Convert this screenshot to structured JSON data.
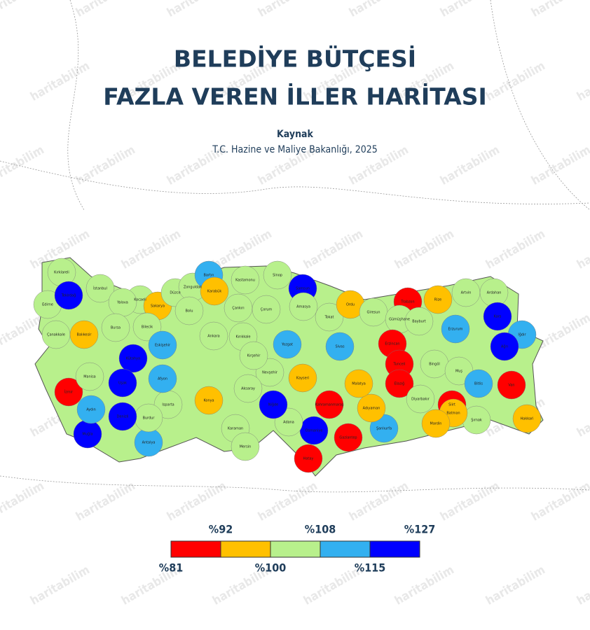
{
  "header": {
    "title_lines": [
      "BELEDİYE BÜTÇESİ",
      "FAZLA VEREN İLLER HARİTASI"
    ],
    "source_label": "Kaynak",
    "source": "T.C. Hazine ve Maliye Bakanlığı, 2025"
  },
  "watermark": "haritabilim",
  "legend": {
    "colors": [
      "#ff0000",
      "#ffc000",
      "#b8f08c",
      "#33b0f0",
      "#0000ff"
    ],
    "labels": [
      "%81",
      "%92",
      "%100",
      "%108",
      "%115",
      "%127"
    ]
  },
  "provinces": [
    {
      "name": "Kırklareli",
      "class": 2
    },
    {
      "name": "Edirne",
      "class": 2
    },
    {
      "name": "İstanbul",
      "class": 2
    },
    {
      "name": "Tekirdağ",
      "class": 4
    },
    {
      "name": "Kocaeli",
      "class": 2
    },
    {
      "name": "Yalova",
      "class": 2
    },
    {
      "name": "Sakarya",
      "class": 1
    },
    {
      "name": "Düzce",
      "class": 2
    },
    {
      "name": "Zonguldak",
      "class": 2
    },
    {
      "name": "Bartın",
      "class": 3
    },
    {
      "name": "Karabük",
      "class": 1
    },
    {
      "name": "Kastamonu",
      "class": 2
    },
    {
      "name": "Sinop",
      "class": 2
    },
    {
      "name": "Samsun",
      "class": 4
    },
    {
      "name": "Bolu",
      "class": 2
    },
    {
      "name": "Bilecik",
      "class": 2
    },
    {
      "name": "Bursa",
      "class": 2
    },
    {
      "name": "Çanakkale",
      "class": 2
    },
    {
      "name": "Balıkesir",
      "class": 1
    },
    {
      "name": "Çankırı",
      "class": 2
    },
    {
      "name": "Çorum",
      "class": 2
    },
    {
      "name": "Amasya",
      "class": 2
    },
    {
      "name": "Tokat",
      "class": 2
    },
    {
      "name": "Ordu",
      "class": 1
    },
    {
      "name": "Giresun",
      "class": 2
    },
    {
      "name": "Trabzon",
      "class": 0
    },
    {
      "name": "Rize",
      "class": 1
    },
    {
      "name": "Artvin",
      "class": 2
    },
    {
      "name": "Ardahan",
      "class": 2
    },
    {
      "name": "Gümüşhane",
      "class": 2
    },
    {
      "name": "Bayburt",
      "class": 2
    },
    {
      "name": "Erzurum",
      "class": 3
    },
    {
      "name": "Kars",
      "class": 4
    },
    {
      "name": "Iğdır",
      "class": 3
    },
    {
      "name": "Ağrı",
      "class": 4
    },
    {
      "name": "Ankara",
      "class": 2
    },
    {
      "name": "Kırıkkale",
      "class": 2
    },
    {
      "name": "Yozgat",
      "class": 3
    },
    {
      "name": "Sivas",
      "class": 3
    },
    {
      "name": "Erzincan",
      "class": 0
    },
    {
      "name": "Tunceli",
      "class": 0
    },
    {
      "name": "Elazığ",
      "class": 0
    },
    {
      "name": "Bingöl",
      "class": 2
    },
    {
      "name": "Muş",
      "class": 2
    },
    {
      "name": "Bitlis",
      "class": 3
    },
    {
      "name": "Van",
      "class": 0
    },
    {
      "name": "Hakkari",
      "class": 1
    },
    {
      "name": "Şırnak",
      "class": 2
    },
    {
      "name": "Siirt",
      "class": 0
    },
    {
      "name": "Batman",
      "class": 1
    },
    {
      "name": "Mardin",
      "class": 1
    },
    {
      "name": "Diyarbakır",
      "class": 2
    },
    {
      "name": "Şanlıurfa",
      "class": 3
    },
    {
      "name": "Adıyaman",
      "class": 1
    },
    {
      "name": "Malatya",
      "class": 1
    },
    {
      "name": "Kahramanmaraş",
      "class": 0
    },
    {
      "name": "Gaziantep",
      "class": 0
    },
    {
      "name": "Osmaniye",
      "class": 4
    },
    {
      "name": "Hatay",
      "class": 0
    },
    {
      "name": "Adana",
      "class": 2
    },
    {
      "name": "Kayseri",
      "class": 1
    },
    {
      "name": "Niğde",
      "class": 4
    },
    {
      "name": "Nevşehir",
      "class": 2
    },
    {
      "name": "Kırşehir",
      "class": 2
    },
    {
      "name": "Aksaray",
      "class": 2
    },
    {
      "name": "Konya",
      "class": 1
    },
    {
      "name": "Karaman",
      "class": 2
    },
    {
      "name": "Mersin",
      "class": 2
    },
    {
      "name": "Antalya",
      "class": 3
    },
    {
      "name": "Isparta",
      "class": 2
    },
    {
      "name": "Burdur",
      "class": 2
    },
    {
      "name": "Afyon",
      "class": 3
    },
    {
      "name": "Eskişehir",
      "class": 3
    },
    {
      "name": "Kütahya",
      "class": 4
    },
    {
      "name": "Uşak",
      "class": 4
    },
    {
      "name": "Denizli",
      "class": 4
    },
    {
      "name": "Muğla",
      "class": 4
    },
    {
      "name": "Aydın",
      "class": 3
    },
    {
      "name": "İzmir",
      "class": 0
    },
    {
      "name": "Manisa",
      "class": 2
    }
  ]
}
